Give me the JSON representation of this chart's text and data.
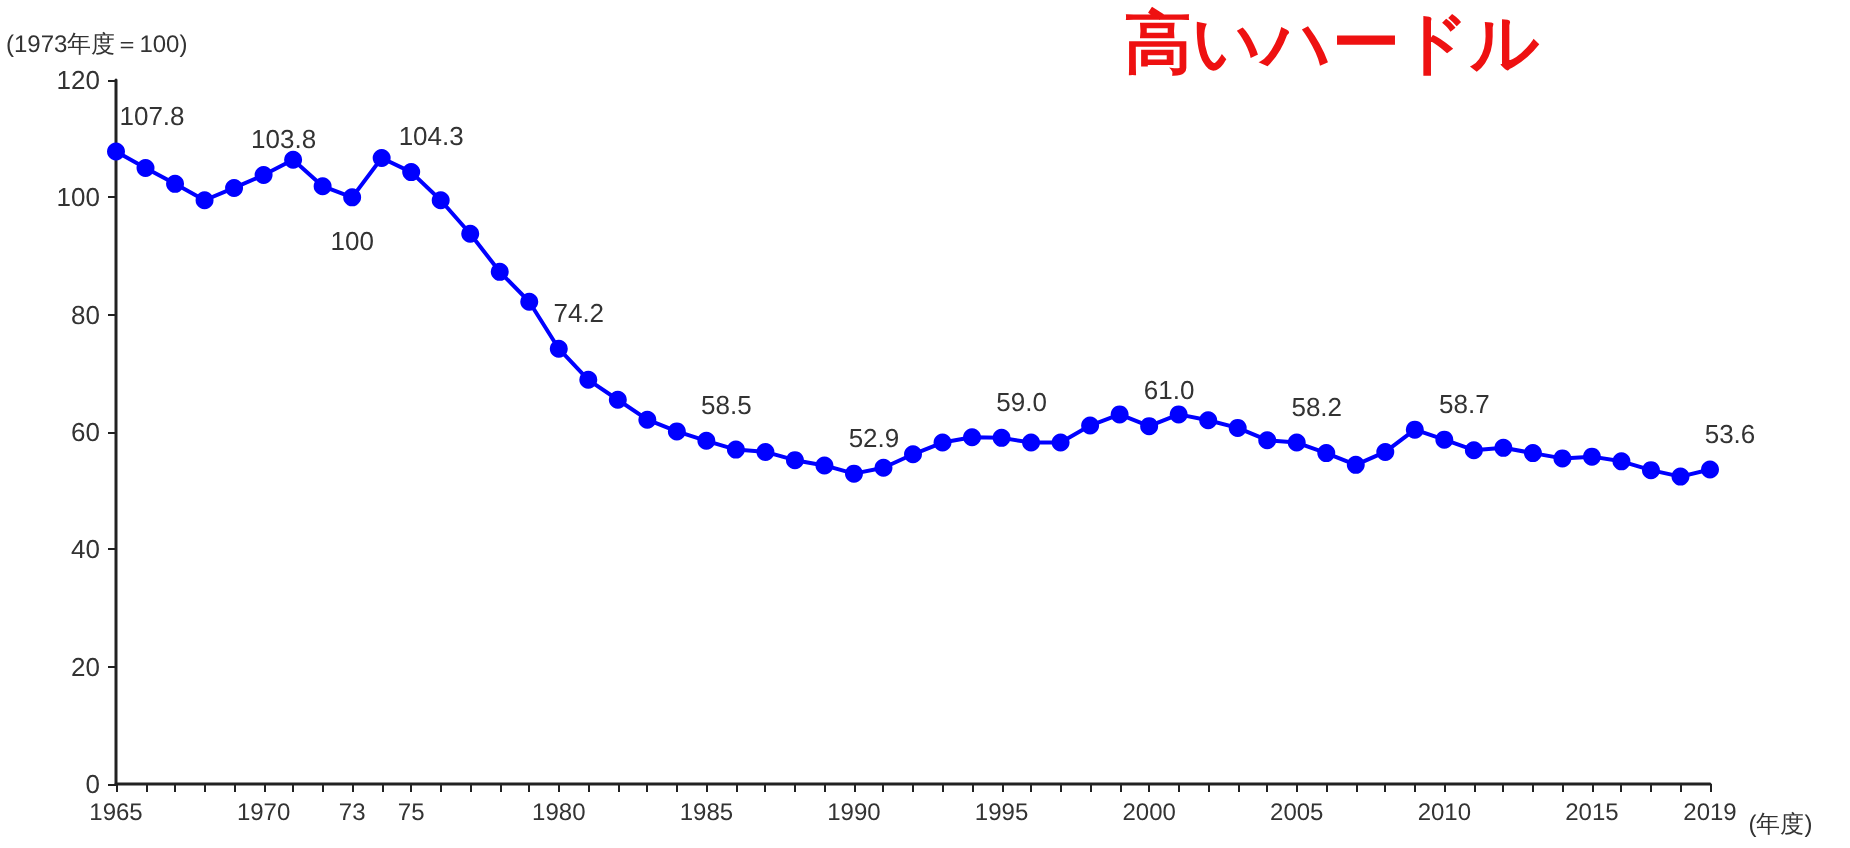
{
  "chart_data": {
    "type": "line",
    "title": "高いハードル",
    "ylabel": "(1973年度＝100)",
    "xlabel": "(年度)",
    "x": [
      1965,
      1966,
      1967,
      1968,
      1969,
      1970,
      1971,
      1972,
      1973,
      1974,
      1975,
      1976,
      1977,
      1978,
      1979,
      1980,
      1981,
      1982,
      1983,
      1984,
      1985,
      1986,
      1987,
      1988,
      1989,
      1990,
      1991,
      1992,
      1993,
      1994,
      1995,
      1996,
      1997,
      1998,
      1999,
      2000,
      2001,
      2002,
      2003,
      2004,
      2005,
      2006,
      2007,
      2008,
      2009,
      2010,
      2011,
      2012,
      2013,
      2014,
      2015,
      2016,
      2017,
      2018,
      2019
    ],
    "series": [
      {
        "color": "#0000ff",
        "values": [
          107.8,
          105.0,
          102.3,
          99.5,
          101.6,
          103.8,
          106.4,
          101.9,
          100,
          106.7,
          104.3,
          99.5,
          93.8,
          87.3,
          82.2,
          74.2,
          68.9,
          65.5,
          62.1,
          60.1,
          58.5,
          57.0,
          56.6,
          55.2,
          54.3,
          52.9,
          53.9,
          56.2,
          58.2,
          59.1,
          59.0,
          58.2,
          58.2,
          61.1,
          63.0,
          61.0,
          63.0,
          62.0,
          60.7,
          58.6,
          58.2,
          56.4,
          54.4,
          56.6,
          60.4,
          58.7,
          56.9,
          57.3,
          56.4,
          55.5,
          55.8,
          55.0,
          53.5,
          52.4,
          53.6
        ],
        "value_labels": [
          "107.8",
          null,
          null,
          null,
          null,
          "103.8",
          null,
          null,
          "100",
          null,
          "104.3",
          null,
          null,
          null,
          null,
          "74.2",
          null,
          null,
          null,
          null,
          "58.5",
          null,
          null,
          null,
          null,
          "52.9",
          null,
          null,
          null,
          null,
          "59.0",
          null,
          null,
          null,
          null,
          "61.0",
          null,
          null,
          null,
          null,
          "58.2",
          null,
          null,
          null,
          null,
          "58.7",
          null,
          null,
          null,
          null,
          null,
          null,
          null,
          null,
          "53.6"
        ]
      }
    ],
    "xlim": [
      1965,
      2019
    ],
    "xticks": [
      1965,
      {
        "value": 1966,
        "label": null
      },
      {
        "value": 1967,
        "label": null
      },
      {
        "value": 1968,
        "label": null
      },
      {
        "value": 1969,
        "label": null
      },
      1970,
      {
        "value": 1971,
        "label": null
      },
      {
        "value": 1972,
        "label": null
      },
      {
        "value": 1973,
        "label": "73"
      },
      {
        "value": 1974,
        "label": null
      },
      {
        "value": 1975,
        "label": "75"
      },
      {
        "value": 1976,
        "label": null
      },
      {
        "value": 1977,
        "label": null
      },
      {
        "value": 1978,
        "label": null
      },
      {
        "value": 1979,
        "label": null
      },
      1980,
      {
        "value": 1981,
        "label": null
      },
      {
        "value": 1982,
        "label": null
      },
      {
        "value": 1983,
        "label": null
      },
      {
        "value": 1984,
        "label": null
      },
      1985,
      {
        "value": 1986,
        "label": null
      },
      {
        "value": 1987,
        "label": null
      },
      {
        "value": 1988,
        "label": null
      },
      {
        "value": 1989,
        "label": null
      },
      1990,
      {
        "value": 1991,
        "label": null
      },
      {
        "value": 1992,
        "label": null
      },
      {
        "value": 1993,
        "label": null
      },
      {
        "value": 1994,
        "label": null
      },
      1995,
      {
        "value": 1996,
        "label": null
      },
      {
        "value": 1997,
        "label": null
      },
      {
        "value": 1998,
        "label": null
      },
      {
        "value": 1999,
        "label": null
      },
      2000,
      {
        "value": 2001,
        "label": null
      },
      {
        "value": 2002,
        "label": null
      },
      {
        "value": 2003,
        "label": null
      },
      {
        "value": 2004,
        "label": null
      },
      2005,
      {
        "value": 2006,
        "label": null
      },
      {
        "value": 2007,
        "label": null
      },
      {
        "value": 2008,
        "label": null
      },
      {
        "value": 2009,
        "label": null
      },
      2010,
      {
        "value": 2011,
        "label": null
      },
      {
        "value": 2012,
        "label": null
      },
      {
        "value": 2013,
        "label": null
      },
      {
        "value": 2014,
        "label": null
      },
      2015,
      {
        "value": 2016,
        "label": null
      },
      {
        "value": 2017,
        "label": null
      },
      {
        "value": 2018,
        "label": null
      },
      2019
    ],
    "ylim": [
      0,
      120
    ],
    "yticks": [
      0,
      20,
      40,
      60,
      80,
      100,
      120
    ],
    "grid": false,
    "marker": "circle",
    "line_style": "solid"
  }
}
